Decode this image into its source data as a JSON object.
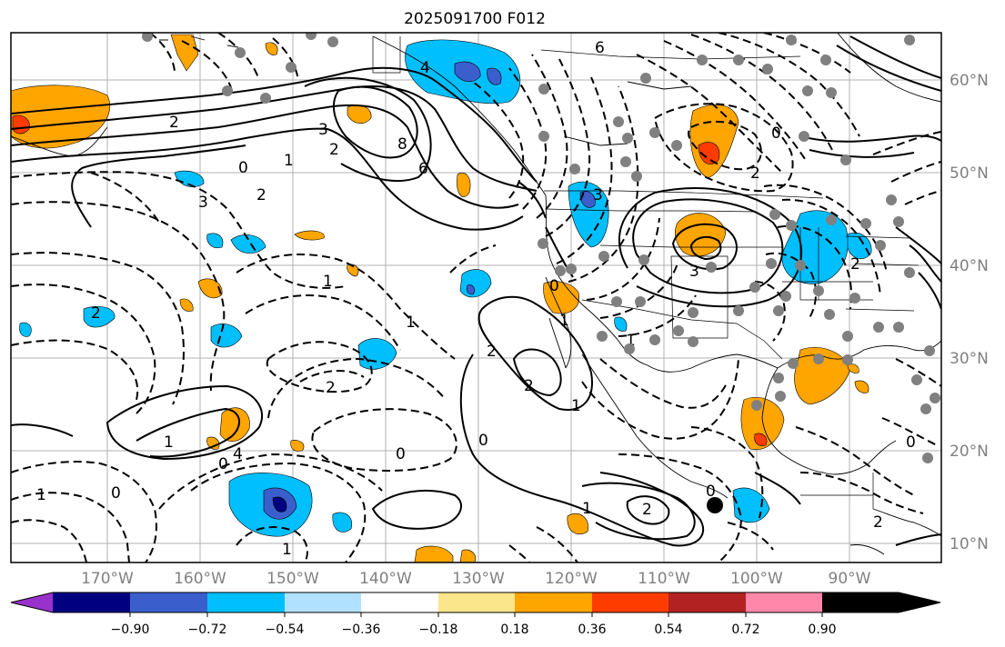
{
  "title": "2025091700 F012",
  "lat_labels": [
    "60°N",
    "50°N",
    "40°N",
    "30°N",
    "20°N",
    "10°N"
  ],
  "lon_labels": [
    "170°W",
    "160°W",
    "150°W",
    "140°W",
    "130°W",
    "120°W",
    "110°W",
    "100°W",
    "90°W"
  ],
  "colorbar": {
    "tick_labels": [
      "−0.90",
      "−0.72",
      "−0.54",
      "−0.36",
      "−0.18",
      "0.18",
      "0.36",
      "0.54",
      "0.72",
      "0.90"
    ],
    "colors": [
      "#9932cc",
      "#000080",
      "#3a5fcd",
      "#00bfff",
      "#b0e2ff",
      "#ffffff",
      "#fce68c",
      "#ffa500",
      "#ff3c00",
      "#b22222",
      "#ff88aa"
    ]
  },
  "contour_labels": [
    "2",
    "3",
    "2",
    "8",
    "6",
    "1",
    "0",
    "3",
    "2",
    "4",
    "6",
    "3",
    "2",
    "3",
    "0",
    "2",
    "1",
    "2",
    "1",
    "0",
    "1",
    "2",
    "2",
    "1",
    "1",
    "0",
    "0",
    "4",
    "1",
    "0",
    "2",
    "2",
    "1",
    "0",
    "0",
    "1",
    "2",
    "1",
    "0"
  ]
}
